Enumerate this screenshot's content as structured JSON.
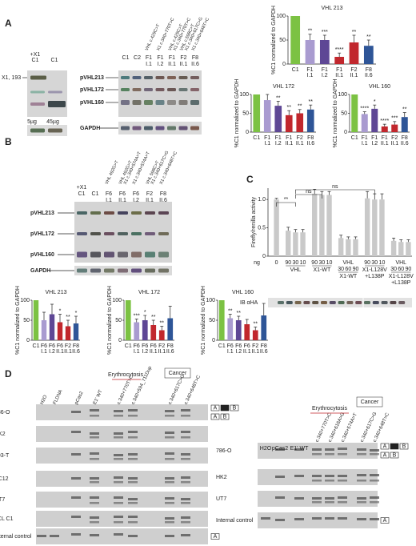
{
  "panel_labels": [
    "A",
    "B",
    "C",
    "D"
  ],
  "blot_a": {
    "left_lanes": [
      "C1",
      "C1"
    ],
    "left_lanes_sub": [
      "+X1",
      null
    ],
    "band_left": "X1, 193",
    "loads": [
      "5µg",
      "45µg"
    ],
    "rows": [
      "pVHL213",
      "pVHL172",
      "pVHL160"
    ],
    "gapdh": "GAPDH",
    "lanes": [
      "C1",
      "C2",
      "F1",
      "F1",
      "F1",
      "F2",
      "F8"
    ],
    "lane_sub": [
      null,
      null,
      "I.1",
      "I.2",
      "II.1",
      "II.1",
      "II.6"
    ],
    "lane_colors": [
      "#222",
      "#222",
      "#222",
      "#222",
      "#c1272d",
      "#c1272d",
      "#222"
    ],
    "mutations": [
      [],
      [],
      [
        "VHL c.429C>T"
      ],
      [
        "X1 c.340+770T>C"
      ],
      [
        "VHL c.429C>T",
        "X1 c.340+770T>C"
      ],
      [
        "VHL c.598C>T",
        "X1 c.340+617C>G"
      ],
      [
        "X1 c.340+648T>C"
      ]
    ]
  },
  "blot_b": {
    "lanes": [
      "C1",
      "C1",
      "F6",
      "F6",
      "F6",
      "F2",
      "F8"
    ],
    "lane_sub": [
      "+X1",
      null,
      "I.1",
      "II.1",
      "I.2",
      "II.1",
      "II.6"
    ],
    "lane_colors": [
      "#222",
      "#222",
      "#222",
      "#c1272d",
      "#222",
      "#c1272d",
      "#222"
    ],
    "mutations": [
      [],
      [],
      [
        "VHL 492G>T"
      ],
      [
        "VHL 492G>T",
        "X1 c.340+574A>T"
      ],
      [
        "X1 c.340+574A>T"
      ],
      [
        "VHL 598C>T",
        "X1 c.340+617C>G"
      ],
      [
        "X1 c.340+648T>C"
      ]
    ],
    "rows": [
      "pVHL213",
      "pVHL172",
      "pVHL160"
    ],
    "gapdh": "GAPDH"
  },
  "blot_c": {
    "label": "IB αHA"
  },
  "panel_d": {
    "left": {
      "groups": [
        "Erythrocytosis",
        "Cancer"
      ],
      "lanes": [
        "H2O",
        "FLDNA",
        "pCas2",
        "E1' WT",
        "c.340+770T>C",
        "c.340+594_711Dup",
        "c.340+617C>G",
        "c.340+648T>C"
      ],
      "rows": [
        "786-O",
        "HK2",
        "293-T",
        "PC12",
        "UT7",
        "LCL C1",
        "Internal control"
      ],
      "exon_top": [
        "A",
        "1'",
        "B"
      ],
      "exon_bottom": [
        "A",
        "B"
      ],
      "internal": "A"
    },
    "right": {
      "groups": [
        "Erythrocytosis",
        "Cancer"
      ],
      "lanes": [
        "H2O",
        "pCas2",
        "E1' WT",
        "c.340+770T>C",
        "c.340+616A>G",
        "c.340+574A>T",
        "c.340+617C>G",
        "c.340+648T>C"
      ],
      "rows": [
        "786-O",
        "HK2",
        "UT7",
        "Internal control"
      ],
      "exon_top": [
        "A",
        "1'",
        "B"
      ],
      "exon_bottom": [
        "A",
        "B"
      ],
      "internal": "A"
    }
  },
  "chart_data": [
    {
      "type": "bar",
      "title": "VHL 213",
      "ylabel": "%C1 normalized to GAPDH",
      "categories": [
        "C1",
        "F1",
        "F1",
        "F1",
        "F2",
        "F8"
      ],
      "sublabels": [
        null,
        "I.1",
        "I.2",
        "II.1",
        "II.1",
        "II.6"
      ],
      "values": [
        100,
        50,
        50,
        15,
        45,
        38
      ],
      "errors": [
        0,
        12,
        10,
        8,
        15,
        12
      ],
      "colors": [
        "#7cc243",
        "#a99bd0",
        "#5e4795",
        "#c1272d",
        "#c1272d",
        "#2e5597"
      ],
      "annotations": [
        null,
        "**",
        "***",
        "****",
        "**",
        "**"
      ],
      "ylim": [
        0,
        100
      ],
      "yticks": [
        0,
        50,
        100
      ]
    },
    {
      "type": "bar",
      "title": "VHL 172",
      "ylabel": "%C1 normalized to GAPDH",
      "categories": [
        "C1",
        "F1",
        "F1",
        "F1",
        "F2",
        "F8"
      ],
      "sublabels": [
        null,
        "I.1",
        "I.2",
        "II.1",
        "II.1",
        "II.6"
      ],
      "values": [
        100,
        85,
        70,
        45,
        50,
        60
      ],
      "errors": [
        0,
        15,
        12,
        12,
        10,
        12
      ],
      "colors": [
        "#7cc243",
        "#a99bd0",
        "#5e4795",
        "#c1272d",
        "#c1272d",
        "#2e5597"
      ],
      "annotations": [
        null,
        null,
        "**",
        "**",
        "**",
        "**"
      ],
      "ylim": [
        0,
        100
      ],
      "yticks": [
        0,
        50,
        100
      ]
    },
    {
      "type": "bar",
      "title": "VHL 160",
      "ylabel": "%C1 normalized to GAPDH",
      "categories": [
        "C1",
        "F1",
        "F1",
        "F1",
        "F2",
        "F8"
      ],
      "sublabels": [
        null,
        "I.1",
        "I.2",
        "II.1",
        "II.1",
        "II.6"
      ],
      "values": [
        100,
        48,
        62,
        15,
        20,
        40
      ],
      "errors": [
        0,
        6,
        10,
        6,
        8,
        12
      ],
      "colors": [
        "#7cc243",
        "#a99bd0",
        "#5e4795",
        "#c1272d",
        "#c1272d",
        "#2e5597"
      ],
      "annotations": [
        null,
        "****",
        "*",
        "****",
        "***",
        "**"
      ],
      "ylim": [
        0,
        100
      ],
      "yticks": [
        0,
        50,
        100
      ]
    },
    {
      "type": "bar",
      "title": "VHL 213",
      "ylabel": "%C1 normalized to GAPDH",
      "categories": [
        "C1",
        "F6",
        "F6",
        "F6",
        "F2",
        "F8"
      ],
      "sublabels": [
        null,
        "I.1",
        "I.2",
        "II.1",
        "II.1",
        "II.6"
      ],
      "values": [
        100,
        50,
        65,
        45,
        35,
        42
      ],
      "errors": [
        0,
        20,
        25,
        20,
        15,
        18
      ],
      "colors": [
        "#7cc243",
        "#a99bd0",
        "#5e4795",
        "#c1272d",
        "#c1272d",
        "#2e5597"
      ],
      "annotations": [
        null,
        null,
        null,
        "*",
        "**",
        "*"
      ],
      "ylim": [
        0,
        100
      ],
      "yticks": [
        0,
        50,
        100
      ]
    },
    {
      "type": "bar",
      "title": "VHL 172",
      "ylabel": "%C1 normalized to GAPDH",
      "categories": [
        "C1",
        "F6",
        "F6",
        "F6",
        "F2",
        "F8"
      ],
      "sublabels": [
        null,
        "I.1",
        "I.2",
        "II.1",
        "II.1",
        "II.6"
      ],
      "values": [
        100,
        45,
        50,
        38,
        25,
        55
      ],
      "errors": [
        0,
        8,
        12,
        12,
        10,
        30
      ],
      "colors": [
        "#7cc243",
        "#a99bd0",
        "#5e4795",
        "#c1272d",
        "#c1272d",
        "#2e5597"
      ],
      "annotations": [
        null,
        "***",
        "*",
        "**",
        "**",
        null
      ],
      "ylim": [
        0,
        100
      ],
      "yticks": [
        0,
        50,
        100
      ]
    },
    {
      "type": "bar",
      "title": "VHL 160",
      "ylabel": "%C1 normalized to GAPDH",
      "categories": [
        "C1",
        "F6",
        "F6",
        "F6",
        "F2",
        "F8"
      ],
      "sublabels": [
        null,
        "I.1",
        "I.2",
        "II.1",
        "II.1",
        "II.6"
      ],
      "values": [
        100,
        55,
        50,
        40,
        25,
        62
      ],
      "errors": [
        0,
        10,
        10,
        12,
        8,
        30
      ],
      "colors": [
        "#7cc243",
        "#a99bd0",
        "#5e4795",
        "#c1272d",
        "#c1272d",
        "#2e5597"
      ],
      "annotations": [
        null,
        "**",
        "**",
        null,
        "**",
        null
      ],
      "ylim": [
        0,
        100
      ],
      "yticks": [
        0,
        50,
        100
      ]
    },
    {
      "type": "grouped_bar",
      "ylabel": "Firefly/renilla activity",
      "xunit": "ng",
      "color": "#c9c9c9",
      "ylim": [
        0,
        1.2
      ],
      "yticks": [
        0,
        0.5,
        {
          "value": 1,
          "label": "1.0"
        }
      ],
      "groups": [
        {
          "doses": [
            "0"
          ],
          "values": [
            1.0
          ],
          "errors": [
            0.02
          ]
        },
        {
          "doses": [
            "90",
            "30",
            "10"
          ],
          "name": "VHL",
          "values": [
            0.45,
            0.42,
            0.42
          ],
          "errors": [
            0.06,
            0.05,
            0.05
          ]
        },
        {
          "doses": [
            "90",
            "30",
            "10"
          ],
          "name": "X1-WT",
          "values": [
            1.1,
            1.08,
            1.08
          ],
          "errors": [
            0.08,
            0.06,
            0.06
          ]
        },
        {
          "top": "VHL",
          "doses": [
            "30",
            "60",
            "90"
          ],
          "name": "X1-WT",
          "values": [
            0.32,
            0.3,
            0.3
          ],
          "errors": [
            0.05,
            0.04,
            0.04
          ]
        },
        {
          "doses": [
            "90",
            "30",
            "10"
          ],
          "name": "X1-L128V",
          "name2": "+L138P",
          "values": [
            1.02,
            1.0,
            1.0
          ],
          "errors": [
            0.12,
            0.1,
            0.1
          ]
        },
        {
          "top": "VHL",
          "doses": [
            "30",
            "60",
            "90"
          ],
          "name": "X1-L128V",
          "name2": "+L138P",
          "values": [
            0.27,
            0.25,
            0.25
          ],
          "errors": [
            0.05,
            0.04,
            0.04
          ]
        }
      ],
      "brackets": [
        "**",
        "ns",
        "ns"
      ]
    }
  ]
}
